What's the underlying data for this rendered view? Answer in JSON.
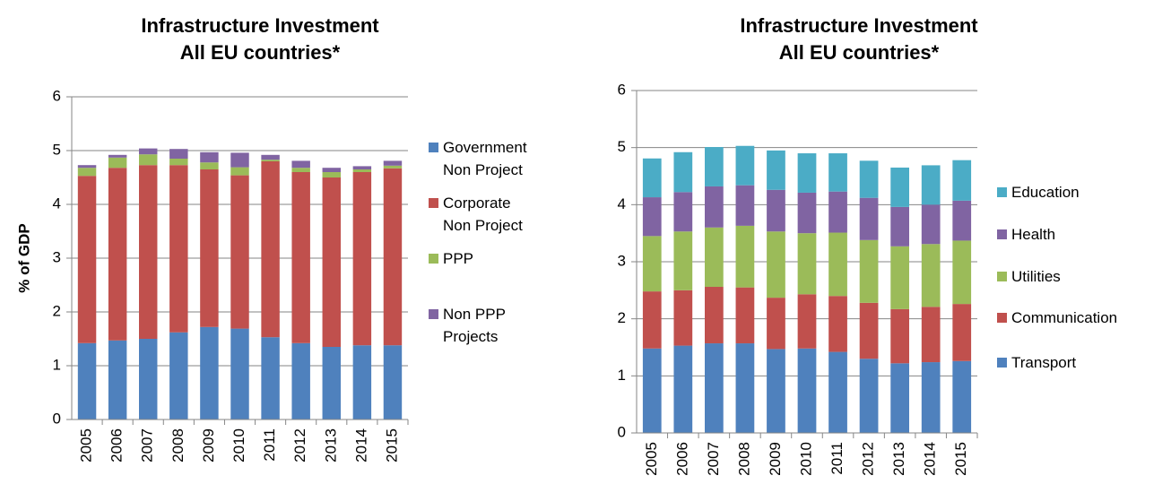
{
  "chart_data": [
    {
      "type": "stacked_bar",
      "title": "Infrastructure Investment All EU countries*",
      "y_label": "% of GDP",
      "categories": [
        "2005",
        "2006",
        "2007",
        "2008",
        "2009",
        "2010",
        "2011",
        "2012",
        "2013",
        "2014",
        "2015"
      ],
      "series": [
        {
          "name": "Government Non Project",
          "color": "#4f81bd",
          "values": [
            1.42,
            1.47,
            1.5,
            1.62,
            1.72,
            1.69,
            1.53,
            1.42,
            1.35,
            1.38,
            1.38
          ]
        },
        {
          "name": "Corporate Non Project",
          "color": "#c0504d",
          "values": [
            3.11,
            3.21,
            3.23,
            3.11,
            2.93,
            2.85,
            3.27,
            3.18,
            3.15,
            3.22,
            3.29
          ]
        },
        {
          "name": "PPP",
          "color": "#9bbb59",
          "values": [
            0.15,
            0.19,
            0.2,
            0.12,
            0.13,
            0.15,
            0.03,
            0.08,
            0.1,
            0.05,
            0.05
          ]
        },
        {
          "name": "Non PPP Projects",
          "color": "#8064a2",
          "values": [
            0.05,
            0.05,
            0.11,
            0.18,
            0.19,
            0.27,
            0.09,
            0.13,
            0.08,
            0.06,
            0.09
          ]
        }
      ],
      "ylim": [
        0,
        6
      ],
      "yticks": [
        0,
        1,
        2,
        3,
        4,
        5,
        6
      ],
      "grid": true,
      "legend": "right"
    },
    {
      "type": "stacked_bar",
      "title": "Infrastructure Investment All EU countries*",
      "categories": [
        "2005",
        "2006",
        "2007",
        "2008",
        "2009",
        "2010",
        "2011",
        "2012",
        "2013",
        "2014",
        "2015"
      ],
      "series": [
        {
          "name": "Transport",
          "color": "#4f81bd",
          "values": [
            1.48,
            1.53,
            1.57,
            1.57,
            1.47,
            1.48,
            1.42,
            1.3,
            1.22,
            1.24,
            1.26
          ]
        },
        {
          "name": "Communication",
          "color": "#c0504d",
          "values": [
            1.0,
            0.97,
            0.99,
            0.98,
            0.9,
            0.95,
            0.98,
            0.98,
            0.95,
            0.97,
            1.0
          ]
        },
        {
          "name": "Utilities",
          "color": "#9bbb59",
          "values": [
            0.97,
            1.03,
            1.04,
            1.08,
            1.16,
            1.07,
            1.11,
            1.1,
            1.1,
            1.1,
            1.11
          ]
        },
        {
          "name": "Health",
          "color": "#8064a2",
          "values": [
            0.68,
            0.69,
            0.72,
            0.71,
            0.73,
            0.71,
            0.72,
            0.74,
            0.69,
            0.69,
            0.7
          ]
        },
        {
          "name": "Education",
          "color": "#4bacc6",
          "values": [
            0.68,
            0.7,
            0.69,
            0.69,
            0.69,
            0.69,
            0.67,
            0.65,
            0.69,
            0.69,
            0.71
          ]
        }
      ],
      "ylim": [
        0,
        6
      ],
      "yticks": [
        0,
        1,
        2,
        3,
        4,
        5,
        6
      ],
      "grid": true,
      "legend": "right"
    }
  ]
}
